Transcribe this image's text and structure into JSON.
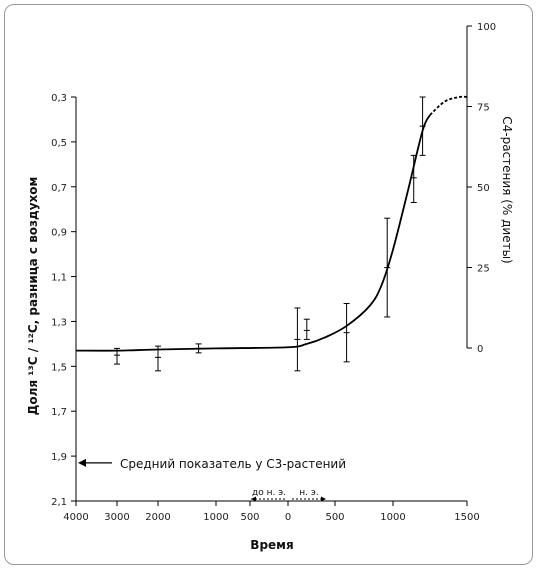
{
  "chart_data": {
    "type": "line",
    "title": "",
    "xlabel": "Время",
    "ylabel": "Доля ¹³C / ¹²C, разница с воздухом",
    "y2label": "C4-растения (% диеты)",
    "x_ticks": [
      "4000",
      "3000",
      "2000",
      "1000",
      "500",
      "0",
      "500",
      "1000",
      "1500"
    ],
    "y_ticks": [
      "0,3",
      "0,5",
      "0,7",
      "0,9",
      "1,1",
      "1,3",
      "1,5",
      "1,7",
      "1,9",
      "2,1"
    ],
    "y2_ticks": [
      "100",
      "75",
      "50",
      "25",
      "0"
    ],
    "ylim": [
      2.1,
      0.3
    ],
    "y2lim": [
      0,
      100
    ],
    "era_labels": {
      "bc": "до н. э.",
      "ad": "н. э."
    },
    "annotation": "Средний показатель у C3-растений",
    "annotation_y": 1.93,
    "curve": [
      {
        "x": -4000,
        "y": 1.43
      },
      {
        "x": -3000,
        "y": 1.43
      },
      {
        "x": -2000,
        "y": 1.425
      },
      {
        "x": -1000,
        "y": 1.42
      },
      {
        "x": 0,
        "y": 1.415
      },
      {
        "x": 200,
        "y": 1.4
      },
      {
        "x": 400,
        "y": 1.37
      },
      {
        "x": 600,
        "y": 1.32
      },
      {
        "x": 800,
        "y": 1.23
      },
      {
        "x": 900,
        "y": 1.14
      },
      {
        "x": 1000,
        "y": 0.98
      },
      {
        "x": 1100,
        "y": 0.72
      },
      {
        "x": 1200,
        "y": 0.45
      },
      {
        "x": 1250,
        "y": 0.38
      }
    ],
    "curve_dashed": [
      {
        "x": 1250,
        "y": 0.38
      },
      {
        "x": 1350,
        "y": 0.32
      },
      {
        "x": 1450,
        "y": 0.3
      },
      {
        "x": 1500,
        "y": 0.3
      }
    ],
    "error_bars": [
      {
        "x": -3000,
        "y": 1.45,
        "low": 1.42,
        "high": 1.49
      },
      {
        "x": -2000,
        "y": 1.46,
        "low": 1.41,
        "high": 1.52
      },
      {
        "x": -1300,
        "y": 1.42,
        "low": 1.4,
        "high": 1.44
      },
      {
        "x": 100,
        "y": 1.38,
        "low": 1.24,
        "high": 1.52
      },
      {
        "x": 200,
        "y": 1.34,
        "low": 1.29,
        "high": 1.38
      },
      {
        "x": 600,
        "y": 1.35,
        "low": 1.22,
        "high": 1.48
      },
      {
        "x": 950,
        "y": 1.06,
        "low": 0.84,
        "high": 1.28
      },
      {
        "x": 1140,
        "y": 0.66,
        "low": 0.56,
        "high": 0.77
      },
      {
        "x": 1200,
        "y": 0.43,
        "low": 0.3,
        "high": 0.56
      }
    ]
  }
}
